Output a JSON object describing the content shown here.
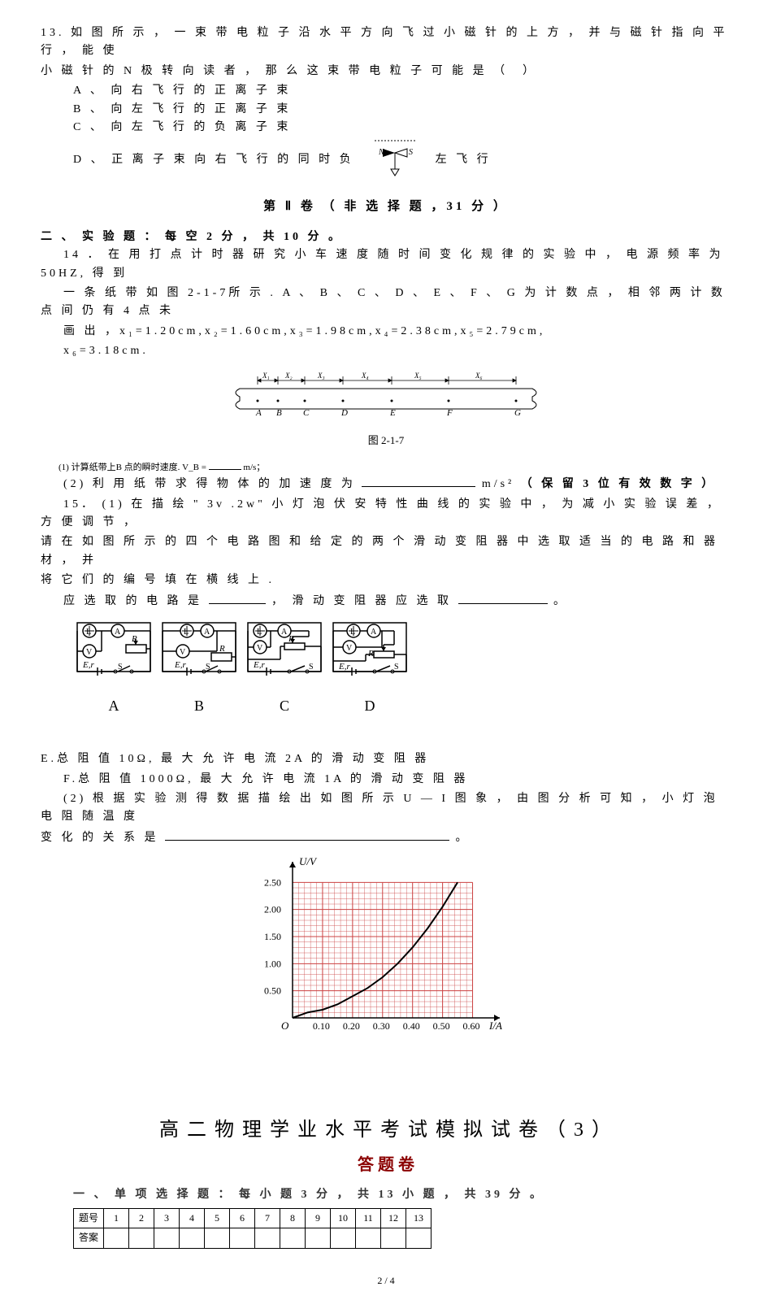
{
  "q13": {
    "number": "13.",
    "text": "如 图 所 示 ， 一 束 带 电 粒 子 沿 水 平 方 向 飞 过 小 磁 针 的 上 方 ， 并 与 磁 针 指 向 平 行 ， 能 使",
    "text2": "小 磁 针 的 N 极 转 向 读 者 ， 那 么 这 束 带 电 粒 子 可 能 是 （　）",
    "optionA": "A 、 向 右 飞 行 的 正 离 子 束",
    "optionB": "B 、 向 左 飞 行 的 正 离 子 束",
    "optionC": "C 、 向 左 飞 行 的 负 离 子 束",
    "optionD_part1": "D 、 正 离 子 束 向 右 飞 行 的 同 时 负",
    "optionD_part2": "左 飞 行"
  },
  "section2": {
    "title": "第 Ⅱ 卷 （ 非 选 择 题 ，31 分 ）",
    "heading": "二 、 实 验 题 ： 每 空 2 分 ， 共 10 分 。"
  },
  "q14": {
    "number": "14 ．",
    "text1": "在 用 打 点 计 时 器 研 究 小 车 速 度 随 时 间 变 化 规 律 的 实 验 中 ， 电 源 频 率 为 50HZ, 得 到",
    "text2": "一 条 纸 带 如 图 2-1-7所 示 . A 、 B 、 C 、 D 、 E 、 F 、 G 为 计 数 点 ， 相 邻 两 计 数 点 间 仍 有 4 点 未",
    "text3": "画 出 ，x₁=1.20cm,x₂=1.60cm,x₃=1.98cm,x₄=2.38cm,x₅=2.79cm,",
    "text4": "x₆=3.18cm.",
    "figure_label": "图 2-1-7",
    "tape_labels": [
      "A",
      "B",
      "C",
      "D",
      "E",
      "F",
      "G"
    ],
    "tape_segments": [
      "X₁",
      "X₂",
      "X₃",
      "X₄",
      "X₅",
      "X₆"
    ],
    "sub1": "(1) 计算纸带上B 点的瞬时速度.  V_B =",
    "sub1_unit": "m/s；",
    "sub2_prefix": "(2) 利 用 纸 带 求 得 物 体 的 加 速 度 为",
    "sub2_unit": "m/s²",
    "sub2_suffix": "（ 保 留 3 位 有 效 数 字 ）"
  },
  "q15": {
    "number": "15．",
    "text1": "(1) 在 描 绘 \" 3v .2w\" 小 灯 泡 伏 安 特 性 曲 线 的 实 验 中 ， 为 减 小 实 验 误 差 ， 方 便 调 节 ，",
    "text2": "请 在 如 图 所 示 的 四 个 电 路 图 和 给 定 的 两 个 滑 动 变 阻 器 中 选 取 适 当 的 电 路 和 器 材 ， 并",
    "text3": "将 它 们 的 编 号 填 在 横 线 上 .",
    "text4_prefix": "应 选 取 的 电 路 是",
    "text4_mid": "， 滑 动 变 阻 器 应 选 取",
    "text4_end": "。",
    "circuit_labels": [
      "A",
      "B",
      "C",
      "D"
    ],
    "textE": "E.总 阻 值 10Ω, 最 大 允 许 电 流 2A 的 滑 动 变 阻 器",
    "textF": "F.总 阻 值 1000Ω, 最 大 允 许 电 流 1A 的 滑 动 变 阻 器",
    "sub2_text1": "(2) 根 据 实 验 测 得 数 据 描 绘 出 如 图 所 示 U — I 图 象 ， 由 图 分 析 可 知 ， 小 灯 泡 电 阻 随 温 度",
    "sub2_text2_prefix": "变 化 的 关 系 是",
    "sub2_text2_end": "。"
  },
  "chart": {
    "ylabel": "U/V",
    "xlabel": "I/A",
    "yticks": [
      "0.50",
      "1.00",
      "1.50",
      "2.00",
      "2.50"
    ],
    "xticks": [
      "0.10",
      "0.20",
      "0.30",
      "0.40",
      "0.50",
      "0.60"
    ],
    "curve_points": [
      [
        0,
        0
      ],
      [
        0.05,
        0.1
      ],
      [
        0.1,
        0.15
      ],
      [
        0.15,
        0.25
      ],
      [
        0.2,
        0.4
      ],
      [
        0.25,
        0.55
      ],
      [
        0.3,
        0.75
      ],
      [
        0.35,
        1.0
      ],
      [
        0.4,
        1.3
      ],
      [
        0.45,
        1.65
      ],
      [
        0.5,
        2.05
      ],
      [
        0.55,
        2.5
      ]
    ],
    "xlim": [
      0,
      0.65
    ],
    "ylim": [
      0,
      2.7
    ],
    "grid_color": "#cc4444"
  },
  "answer_sheet": {
    "title": "高 二 物 理 学 业 水 平 考 试 模 拟 试 卷 （ 3 ）",
    "subtitle": "答 题 卷",
    "section1": "一 、 单 项 选 择 题 ： 每 小 题 3 分 ， 共 13 小 题 ， 共 39 分 。",
    "row1_label": "题号",
    "row2_label": "答案",
    "cols": [
      "1",
      "2",
      "3",
      "4",
      "5",
      "6",
      "7",
      "8",
      "9",
      "10",
      "11",
      "12",
      "13"
    ]
  },
  "footer": "2 / 4"
}
